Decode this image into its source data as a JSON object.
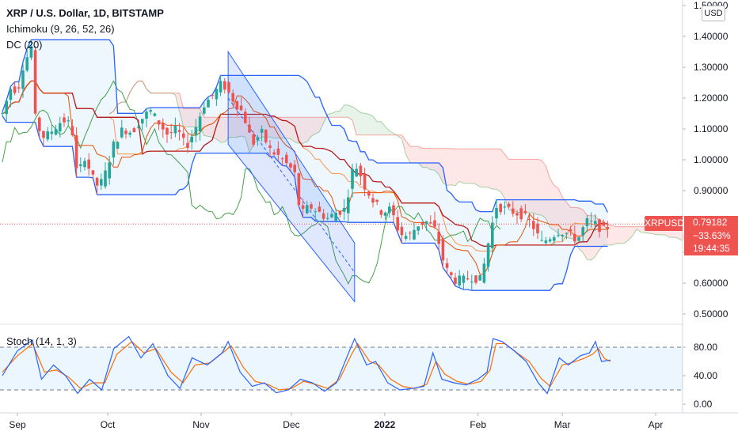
{
  "legend": {
    "symbol": "XRP / U.S. Dollar, 1D, BITSTAMP",
    "ichimoku": "Ichimoku (9, 26, 52, 26)",
    "dc": "DC (20)",
    "stoch": "Stoch (14, 1, 3)"
  },
  "currency": "USD",
  "price_tag": {
    "symbol": "XRPUSD",
    "last": "0.79182",
    "change": "−33.63%",
    "countdown": "19:44:35"
  },
  "colors": {
    "up": "#26a69a",
    "down": "#ef5350",
    "donchian": "#2962ff",
    "ichimoku_kijun": "#b71c1c",
    "ichimoku_tenkan": "#e65100",
    "ichimoku_lagging": "#43a047",
    "stoch_k": "#2962ff",
    "stoch_d": "#ff6d00"
  },
  "chart_data": [
    {
      "type": "candlestick",
      "title": "XRP / U.S. Dollar, 1D, BITSTAMP",
      "x_ticks": [
        "Sep",
        "Oct",
        "Nov",
        "Dec",
        "2022",
        "Feb",
        "Mar",
        "Apr"
      ],
      "y_ticks": [
        "1.50000",
        "1.40000",
        "1.30000",
        "1.20000",
        "1.10000",
        "1.00000",
        "0.90000",
        "0.80000",
        "0.70000",
        "0.60000",
        "0.50000"
      ],
      "ylim": [
        0.46,
        1.5
      ],
      "last_price": 0.79182,
      "series": [
        {
          "name": "XRPUSD",
          "points": [
            [
              "2021-08-27",
              1.15
            ],
            [
              "2021-08-30",
              1.24
            ],
            [
              "2021-09-01",
              1.22
            ],
            [
              "2021-09-03",
              1.31
            ],
            [
              "2021-09-05",
              1.35
            ],
            [
              "2021-09-06",
              1.38
            ],
            [
              "2021-09-07",
              1.12
            ],
            [
              "2021-09-10",
              1.07
            ],
            [
              "2021-09-13",
              1.1
            ],
            [
              "2021-09-16",
              1.13
            ],
            [
              "2021-09-19",
              1.11
            ],
            [
              "2021-09-21",
              0.93
            ],
            [
              "2021-09-23",
              1.02
            ],
            [
              "2021-09-26",
              0.94
            ],
            [
              "2021-09-28",
              0.91
            ],
            [
              "2021-09-30",
              0.95
            ],
            [
              "2021-10-03",
              1.05
            ],
            [
              "2021-10-06",
              1.1
            ],
            [
              "2021-10-09",
              1.09
            ],
            [
              "2021-10-12",
              1.13
            ],
            [
              "2021-10-15",
              1.16
            ],
            [
              "2021-10-18",
              1.12
            ],
            [
              "2021-10-21",
              1.08
            ],
            [
              "2021-10-24",
              1.1
            ],
            [
              "2021-10-27",
              1.04
            ],
            [
              "2021-10-30",
              1.1
            ],
            [
              "2021-11-02",
              1.18
            ],
            [
              "2021-11-05",
              1.21
            ],
            [
              "2021-11-08",
              1.25
            ],
            [
              "2021-11-10",
              1.22
            ],
            [
              "2021-11-12",
              1.19
            ],
            [
              "2021-11-15",
              1.15
            ],
            [
              "2021-11-18",
              1.05
            ],
            [
              "2021-11-21",
              1.09
            ],
            [
              "2021-11-24",
              1.03
            ],
            [
              "2021-11-27",
              1.01
            ],
            [
              "2021-11-30",
              0.98
            ],
            [
              "2021-12-02",
              0.96
            ],
            [
              "2021-12-04",
              0.82
            ],
            [
              "2021-12-07",
              0.85
            ],
            [
              "2021-12-10",
              0.83
            ],
            [
              "2021-12-13",
              0.81
            ],
            [
              "2021-12-16",
              0.83
            ],
            [
              "2021-12-19",
              0.84
            ],
            [
              "2021-12-21",
              0.96
            ],
            [
              "2021-12-23",
              0.98
            ],
            [
              "2021-12-25",
              0.92
            ],
            [
              "2021-12-28",
              0.87
            ],
            [
              "2021-12-31",
              0.83
            ],
            [
              "2022-01-03",
              0.84
            ],
            [
              "2022-01-06",
              0.76
            ],
            [
              "2022-01-09",
              0.75
            ],
            [
              "2022-01-12",
              0.79
            ],
            [
              "2022-01-15",
              0.8
            ],
            [
              "2022-01-18",
              0.77
            ],
            [
              "2022-01-21",
              0.65
            ],
            [
              "2022-01-24",
              0.61
            ],
            [
              "2022-01-27",
              0.61
            ],
            [
              "2022-01-30",
              0.62
            ],
            [
              "2022-02-02",
              0.61
            ],
            [
              "2022-02-05",
              0.76
            ],
            [
              "2022-02-07",
              0.85
            ],
            [
              "2022-02-10",
              0.84
            ],
            [
              "2022-02-13",
              0.83
            ],
            [
              "2022-02-16",
              0.82
            ],
            [
              "2022-02-19",
              0.79
            ],
            [
              "2022-02-22",
              0.73
            ],
            [
              "2022-02-25",
              0.75
            ],
            [
              "2022-02-28",
              0.77
            ],
            [
              "2022-03-03",
              0.76
            ],
            [
              "2022-03-06",
              0.74
            ],
            [
              "2022-03-09",
              0.8
            ],
            [
              "2022-03-12",
              0.79
            ],
            [
              "2022-03-15",
              0.77
            ],
            [
              "2022-03-17",
              0.79182
            ]
          ]
        }
      ]
    },
    {
      "type": "line",
      "title": "Stoch (14, 1, 3)",
      "y_ticks": [
        "80.00",
        "40.00",
        "0.00"
      ],
      "ylim": [
        0,
        100
      ],
      "bands": [
        20,
        80
      ],
      "series": [
        {
          "name": "%K",
          "points": [
            [
              "2021-08-27",
              40
            ],
            [
              "2021-09-01",
              75
            ],
            [
              "2021-09-06",
              90
            ],
            [
              "2021-09-09",
              35
            ],
            [
              "2021-09-13",
              55
            ],
            [
              "2021-09-17",
              40
            ],
            [
              "2021-09-21",
              15
            ],
            [
              "2021-09-25",
              35
            ],
            [
              "2021-09-29",
              20
            ],
            [
              "2021-10-03",
              78
            ],
            [
              "2021-10-08",
              95
            ],
            [
              "2021-10-12",
              65
            ],
            [
              "2021-10-16",
              85
            ],
            [
              "2021-10-21",
              40
            ],
            [
              "2021-10-25",
              22
            ],
            [
              "2021-10-29",
              65
            ],
            [
              "2021-11-03",
              55
            ],
            [
              "2021-11-08",
              72
            ],
            [
              "2021-11-10",
              88
            ],
            [
              "2021-11-14",
              45
            ],
            [
              "2021-11-18",
              25
            ],
            [
              "2021-11-22",
              30
            ],
            [
              "2021-11-26",
              16
            ],
            [
              "2021-11-30",
              20
            ],
            [
              "2021-12-04",
              35
            ],
            [
              "2021-12-08",
              30
            ],
            [
              "2021-12-12",
              18
            ],
            [
              "2021-12-16",
              30
            ],
            [
              "2021-12-20",
              72
            ],
            [
              "2021-12-22",
              92
            ],
            [
              "2021-12-26",
              55
            ],
            [
              "2021-12-29",
              60
            ],
            [
              "2022-01-02",
              30
            ],
            [
              "2022-01-06",
              20
            ],
            [
              "2022-01-10",
              22
            ],
            [
              "2022-01-14",
              25
            ],
            [
              "2022-01-17",
              72
            ],
            [
              "2022-01-20",
              35
            ],
            [
              "2022-01-24",
              30
            ],
            [
              "2022-01-28",
              27
            ],
            [
              "2022-02-01",
              35
            ],
            [
              "2022-02-04",
              45
            ],
            [
              "2022-02-06",
              92
            ],
            [
              "2022-02-09",
              88
            ],
            [
              "2022-02-13",
              75
            ],
            [
              "2022-02-17",
              60
            ],
            [
              "2022-02-21",
              30
            ],
            [
              "2022-02-24",
              15
            ],
            [
              "2022-02-28",
              65
            ],
            [
              "2022-03-03",
              55
            ],
            [
              "2022-03-07",
              68
            ],
            [
              "2022-03-10",
              72
            ],
            [
              "2022-03-12",
              88
            ],
            [
              "2022-03-14",
              60
            ],
            [
              "2022-03-17",
              62
            ]
          ]
        },
        {
          "name": "%D",
          "points": [
            [
              "2021-08-27",
              45
            ],
            [
              "2021-09-01",
              68
            ],
            [
              "2021-09-06",
              85
            ],
            [
              "2021-09-10",
              45
            ],
            [
              "2021-09-14",
              48
            ],
            [
              "2021-09-18",
              38
            ],
            [
              "2021-09-22",
              22
            ],
            [
              "2021-09-26",
              30
            ],
            [
              "2021-09-30",
              30
            ],
            [
              "2021-10-04",
              70
            ],
            [
              "2021-10-09",
              88
            ],
            [
              "2021-10-13",
              72
            ],
            [
              "2021-10-17",
              78
            ],
            [
              "2021-10-22",
              45
            ],
            [
              "2021-10-26",
              30
            ],
            [
              "2021-10-30",
              55
            ],
            [
              "2021-11-04",
              58
            ],
            [
              "2021-11-09",
              75
            ],
            [
              "2021-11-11",
              82
            ],
            [
              "2021-11-15",
              52
            ],
            [
              "2021-11-19",
              32
            ],
            [
              "2021-11-23",
              28
            ],
            [
              "2021-11-27",
              20
            ],
            [
              "2021-12-01",
              22
            ],
            [
              "2021-12-05",
              32
            ],
            [
              "2021-12-09",
              28
            ],
            [
              "2021-12-13",
              22
            ],
            [
              "2021-12-17",
              35
            ],
            [
              "2021-12-21",
              70
            ],
            [
              "2021-12-23",
              85
            ],
            [
              "2021-12-27",
              60
            ],
            [
              "2021-12-30",
              55
            ],
            [
              "2022-01-03",
              35
            ],
            [
              "2022-01-07",
              25
            ],
            [
              "2022-01-11",
              22
            ],
            [
              "2022-01-15",
              28
            ],
            [
              "2022-01-18",
              60
            ],
            [
              "2022-01-21",
              42
            ],
            [
              "2022-01-25",
              32
            ],
            [
              "2022-01-29",
              28
            ],
            [
              "2022-02-02",
              32
            ],
            [
              "2022-02-05",
              48
            ],
            [
              "2022-02-07",
              85
            ],
            [
              "2022-02-10",
              85
            ],
            [
              "2022-02-14",
              72
            ],
            [
              "2022-02-18",
              60
            ],
            [
              "2022-02-22",
              36
            ],
            [
              "2022-02-25",
              25
            ],
            [
              "2022-03-01",
              55
            ],
            [
              "2022-03-04",
              58
            ],
            [
              "2022-03-08",
              64
            ],
            [
              "2022-03-11",
              70
            ],
            [
              "2022-03-13",
              78
            ],
            [
              "2022-03-15",
              64
            ],
            [
              "2022-03-17",
              60
            ]
          ]
        }
      ]
    }
  ]
}
